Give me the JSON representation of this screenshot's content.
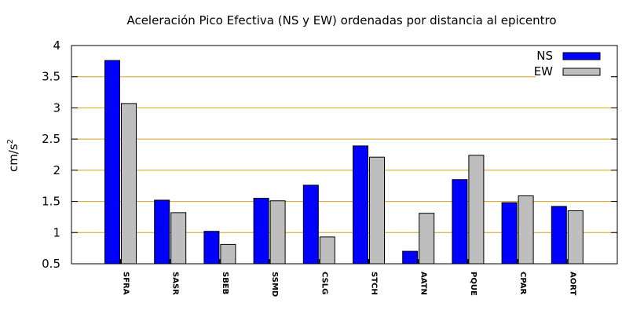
{
  "chart_data": {
    "type": "bar",
    "title": "Aceleración Pico Efectiva (NS y EW) ordenadas por distancia al epicentro",
    "ylabel": "cm/s",
    "ylabel_superscript": "2",
    "xlabel": "",
    "ylim": [
      0.5,
      4
    ],
    "yticks": [
      "0.5",
      "1",
      "1.5",
      "2",
      "2.5",
      "3",
      "3.5",
      "4"
    ],
    "grid": "horizontal",
    "legend_position": "top-right",
    "categories": [
      "SFRA",
      "SASR",
      "SBEB",
      "SSMD",
      "CSLG",
      "STCH",
      "AATN",
      "PQUE",
      "CPAR",
      "AORT"
    ],
    "series": [
      {
        "name": "NS",
        "color": "#0000ff",
        "values": [
          3.76,
          1.52,
          1.02,
          1.55,
          1.76,
          2.39,
          0.7,
          1.85,
          1.48,
          1.42
        ]
      },
      {
        "name": "EW",
        "color": "#bebebe",
        "values": [
          3.07,
          1.32,
          0.81,
          1.51,
          0.93,
          2.21,
          1.31,
          2.24,
          1.59,
          1.35
        ]
      }
    ],
    "grid_color": "#d4a017"
  }
}
